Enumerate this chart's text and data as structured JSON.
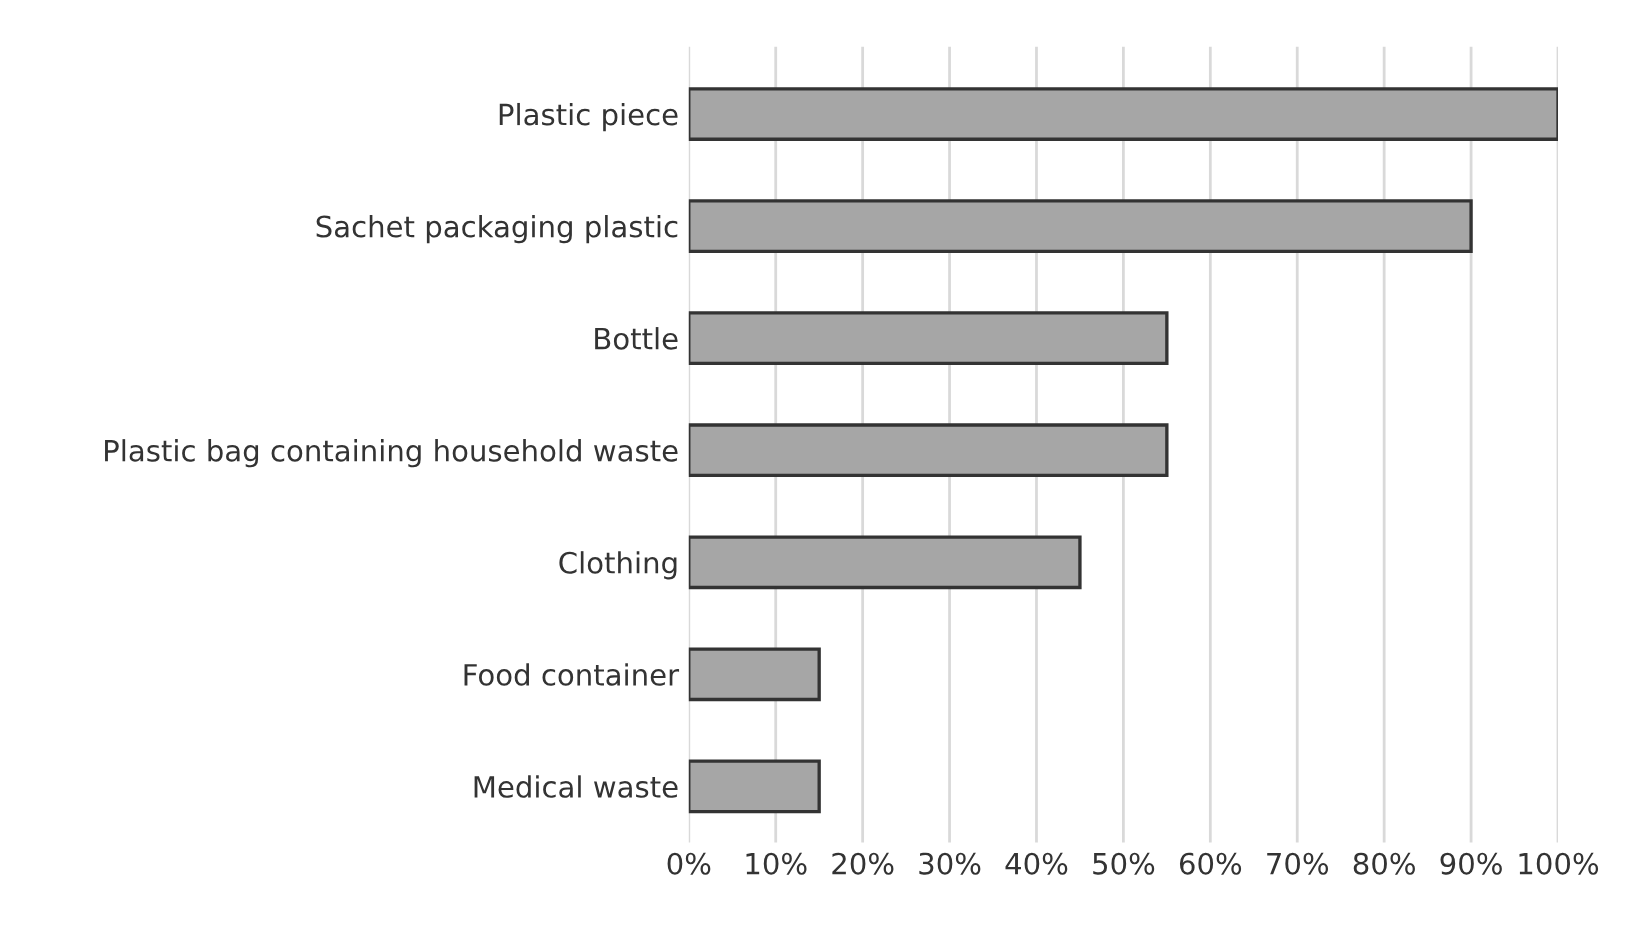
{
  "chart_data": {
    "type": "bar",
    "orientation": "horizontal",
    "categories": [
      "Plastic piece",
      "Sachet packaging plastic",
      "Bottle",
      "Plastic bag containing household waste",
      "Clothing",
      "Food container",
      "Medical waste"
    ],
    "values": [
      100,
      90,
      55,
      55,
      45,
      15,
      15
    ],
    "color": "#a6a6a6",
    "xlim": [
      0,
      100
    ],
    "xticks": [
      {
        "value": 0,
        "label": "0%"
      },
      {
        "value": 10,
        "label": "10%"
      },
      {
        "value": 20,
        "label": "20%"
      },
      {
        "value": 30,
        "label": "30%"
      },
      {
        "value": 40,
        "label": "40%"
      },
      {
        "value": 50,
        "label": "50%"
      },
      {
        "value": 60,
        "label": "60%"
      },
      {
        "value": 70,
        "label": "70%"
      },
      {
        "value": 80,
        "label": "80%"
      },
      {
        "value": 90,
        "label": "90%"
      },
      {
        "value": 100,
        "label": "100%"
      }
    ],
    "grid": "x"
  }
}
